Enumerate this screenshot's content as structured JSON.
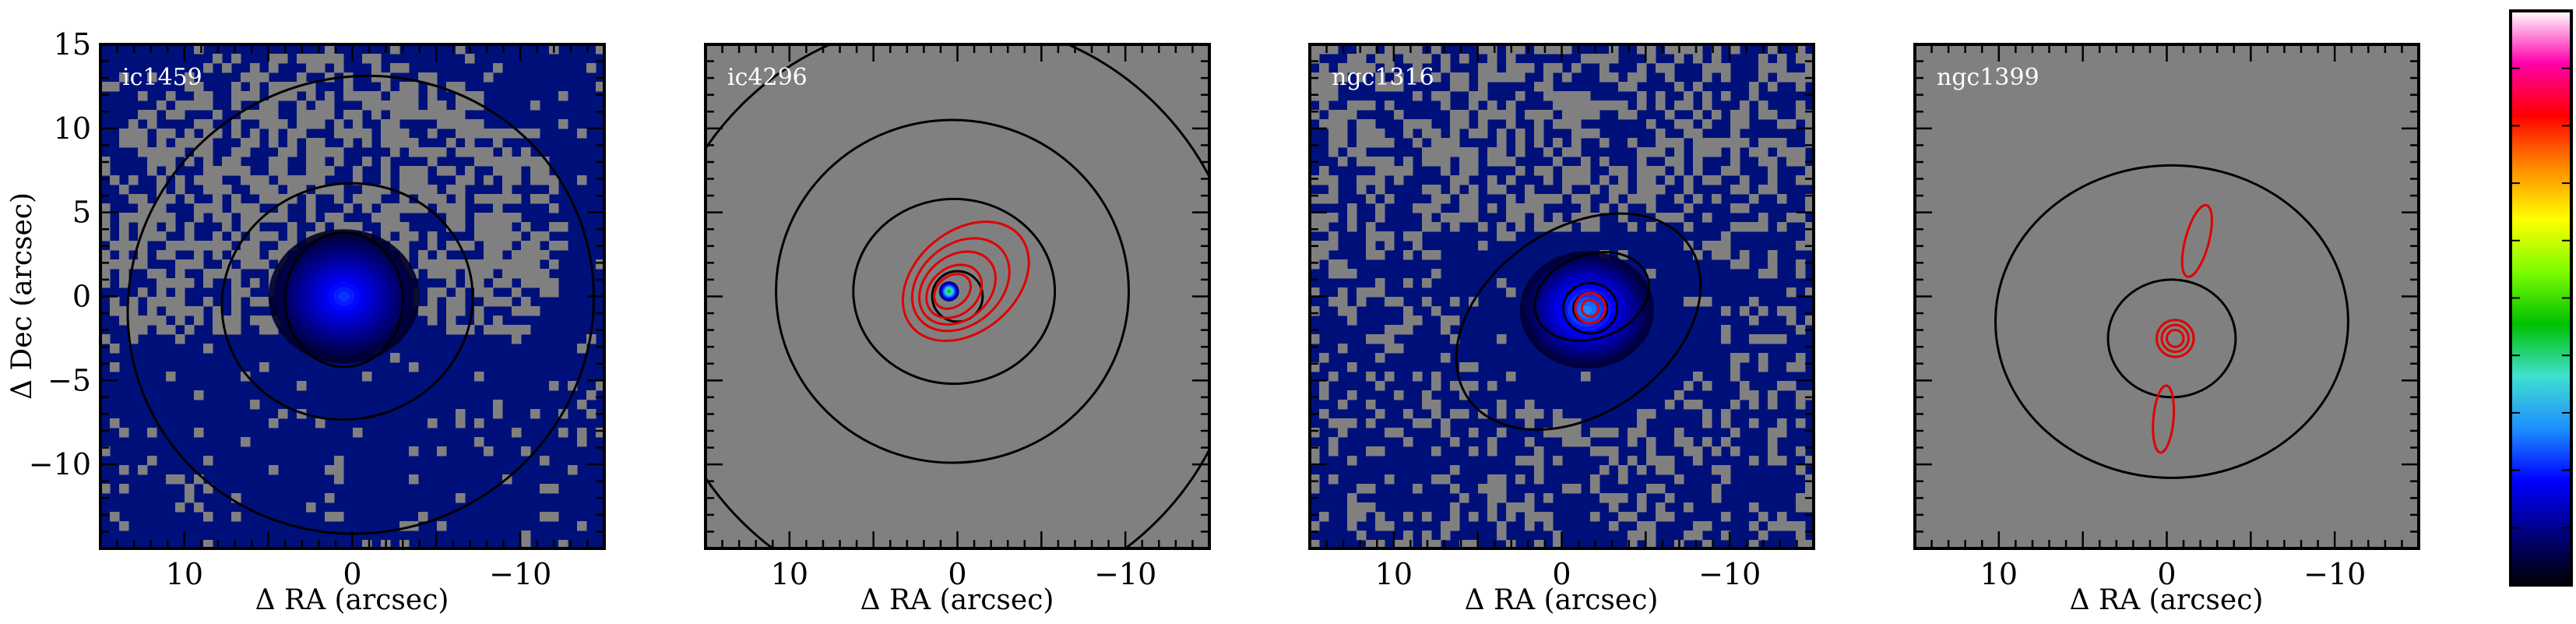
{
  "chart_data": [
    {
      "type": "heatmap",
      "name": "ic1459",
      "xlabel": "Δ RA (arcsec)",
      "ylabel": "Δ Dec (arcsec)",
      "xlim": [
        15,
        -15
      ],
      "ylim": [
        -15,
        15
      ],
      "xticks": [
        10,
        0,
        -10
      ],
      "xtick_labels": [
        "10",
        "0",
        "−10"
      ],
      "yticks": [
        15,
        10,
        5,
        0,
        -5,
        -10
      ],
      "ytick_labels": [
        "15",
        "10",
        "5",
        "0",
        "−5",
        "−10"
      ],
      "background_level": "low",
      "peak": {
        "x": 0.3,
        "y": 0.0,
        "level": 0.5
      },
      "emission": [
        {
          "x": 0.3,
          "y": 0.0,
          "rx": 1.5,
          "ry": 1.5,
          "level": 0.5
        },
        {
          "x": 0.5,
          "y": 0.0,
          "rx": 4.5,
          "ry": 4.0,
          "level": 0.2
        }
      ],
      "black_contours": [
        {
          "cx": 0.5,
          "cy": -0.2,
          "rx": 3.5,
          "ry": 4.0,
          "angle": 0
        },
        {
          "cx": 0.3,
          "cy": -0.3,
          "rx": 7.5,
          "ry": 7.0,
          "angle": -15
        },
        {
          "cx": -0.5,
          "cy": -0.5,
          "rx": 14.0,
          "ry": 13.5,
          "angle": -30
        }
      ],
      "red_contours": []
    },
    {
      "type": "heatmap",
      "name": "ic4296",
      "xlabel": "Δ RA (arcsec)",
      "ylabel": "",
      "xlim": [
        15,
        -15
      ],
      "ylim": [
        -15,
        15
      ],
      "xticks": [
        10,
        0,
        -10
      ],
      "xtick_labels": [
        "10",
        "0",
        "−10"
      ],
      "yticks": [],
      "ytick_labels": [],
      "background_level": "masked",
      "peak": {
        "x": 0.5,
        "y": 0.3,
        "level": 0.45
      },
      "emission": [
        {
          "x": 0.5,
          "y": 0.3,
          "rx": 0.6,
          "ry": 0.6,
          "level": 0.45
        }
      ],
      "black_contours": [
        {
          "cx": 0.0,
          "cy": 0.0,
          "rx": 1.5,
          "ry": 1.5,
          "angle": 0
        },
        {
          "cx": 0.2,
          "cy": 0.3,
          "rx": 6.0,
          "ry": 5.5,
          "angle": 0
        },
        {
          "cx": 0.3,
          "cy": 0.3,
          "rx": 10.5,
          "ry": 10.2,
          "angle": 0
        },
        {
          "cx": 0.5,
          "cy": -1.0,
          "rx": 17.5,
          "ry": 17.5,
          "angle": 0
        }
      ],
      "red_contours": [
        {
          "cx": 0.3,
          "cy": 0.3,
          "rx": 1.2,
          "ry": 0.9,
          "angle": -40
        },
        {
          "cx": 0.2,
          "cy": 0.3,
          "rx": 1.8,
          "ry": 1.4,
          "angle": -40
        },
        {
          "cx": 0.0,
          "cy": 0.5,
          "rx": 2.5,
          "ry": 1.9,
          "angle": -40
        },
        {
          "cx": -0.2,
          "cy": 0.7,
          "rx": 3.2,
          "ry": 2.4,
          "angle": -40
        },
        {
          "cx": -0.5,
          "cy": 0.9,
          "rx": 4.2,
          "ry": 3.0,
          "angle": -40
        }
      ]
    },
    {
      "type": "heatmap",
      "name": "ngc1316",
      "xlabel": "Δ RA (arcsec)",
      "ylabel": "",
      "xlim": [
        15,
        -15
      ],
      "ylim": [
        -15,
        15
      ],
      "xticks": [
        10,
        0,
        -10
      ],
      "xtick_labels": [
        "10",
        "0",
        "−10"
      ],
      "yticks": [],
      "ytick_labels": [],
      "background_level": "low",
      "peak": {
        "x": -1.7,
        "y": -0.7,
        "level": 0.85
      },
      "emission": [
        {
          "x": -1.7,
          "y": -0.7,
          "rx": 1.2,
          "ry": 1.2,
          "level": 0.85
        },
        {
          "x": -1.5,
          "y": -0.8,
          "rx": 4.0,
          "ry": 3.5,
          "level": 0.25
        }
      ],
      "black_contours": [
        {
          "cx": -1.7,
          "cy": -0.7,
          "rx": 1.0,
          "ry": 0.9,
          "angle": 0
        },
        {
          "cx": -1.7,
          "cy": -0.7,
          "rx": 1.6,
          "ry": 1.5,
          "angle": 0
        },
        {
          "cx": -1.8,
          "cy": 0.0,
          "rx": 3.5,
          "ry": 2.5,
          "angle": -20
        },
        {
          "cx": -1.0,
          "cy": -1.5,
          "rx": 8.0,
          "ry": 5.5,
          "angle": -35
        }
      ],
      "red_contours": [
        {
          "cx": -1.7,
          "cy": -0.7,
          "rx": 0.5,
          "ry": 0.5,
          "angle": 0
        },
        {
          "cx": -1.7,
          "cy": -0.7,
          "rx": 0.9,
          "ry": 0.9,
          "angle": 0
        }
      ]
    },
    {
      "type": "heatmap",
      "name": "ngc1399",
      "xlabel": "Δ RA (arcsec)",
      "ylabel": "",
      "xlim": [
        15,
        -15
      ],
      "ylim": [
        -15,
        15
      ],
      "xticks": [
        10,
        0,
        -10
      ],
      "xtick_labels": [
        "10",
        "0",
        "−10"
      ],
      "yticks": [],
      "ytick_labels": [],
      "background_level": "masked",
      "peak": {
        "x": -0.5,
        "y": -2.5,
        "level": 0.1
      },
      "emission": [],
      "black_contours": [
        {
          "cx": -0.3,
          "cy": -2.5,
          "rx": 3.8,
          "ry": 3.5,
          "angle": 0
        },
        {
          "cx": -0.3,
          "cy": -1.5,
          "rx": 10.5,
          "ry": 9.3,
          "angle": 0
        }
      ],
      "red_contours": [
        {
          "cx": -0.5,
          "cy": -2.5,
          "rx": 0.5,
          "ry": 0.5,
          "angle": 0
        },
        {
          "cx": -0.5,
          "cy": -2.5,
          "rx": 0.8,
          "ry": 0.8,
          "angle": 0
        },
        {
          "cx": -0.5,
          "cy": -2.5,
          "rx": 1.1,
          "ry": 1.1,
          "angle": 0
        },
        {
          "cx": -1.8,
          "cy": 3.3,
          "rx": 0.7,
          "ry": 2.2,
          "angle": 15
        },
        {
          "cx": 0.2,
          "cy": -7.3,
          "rx": 0.6,
          "ry": 2.0,
          "angle": 5
        }
      ]
    }
  ],
  "colorbar": {
    "colormap": "gist_ncar-like",
    "stops": [
      "#000000",
      "#000080",
      "#0000ff",
      "#1e90ff",
      "#40e0d0",
      "#00c000",
      "#7cfc00",
      "#ffff00",
      "#ff8c00",
      "#ff0000",
      "#ff00aa",
      "#ffffff"
    ],
    "has_tick_labels": false
  },
  "colors": {
    "masked": "#808080",
    "background": "#00107a",
    "black_contour": "#000000",
    "red_contour": "#e00000"
  }
}
